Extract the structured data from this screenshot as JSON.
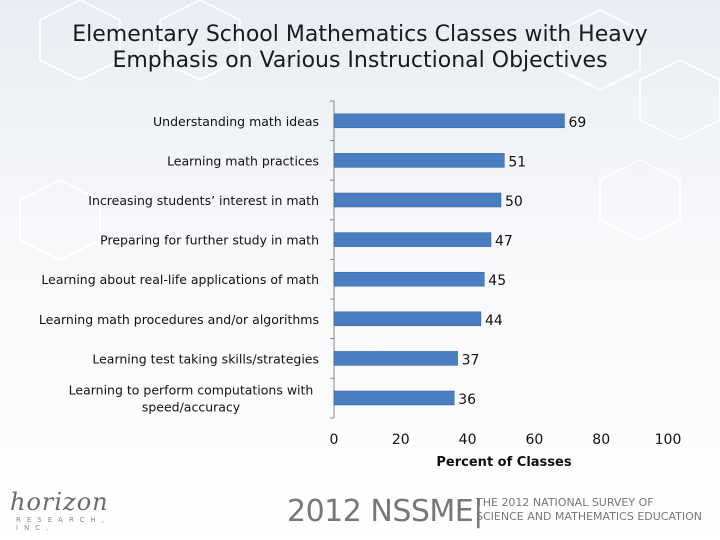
{
  "title": {
    "line1": "Elementary School Mathematics Classes with Heavy",
    "line2": "Emphasis on Various Instructional Objectives"
  },
  "chart_data": {
    "type": "bar",
    "orientation": "horizontal",
    "categories": [
      [
        "Understanding math ideas"
      ],
      [
        "Learning math practices"
      ],
      [
        "Increasing students’ interest in math"
      ],
      [
        "Preparing for further study in math"
      ],
      [
        "Learning about real-life applications of math"
      ],
      [
        "Learning math procedures and/or algorithms"
      ],
      [
        "Learning test taking skills/strategies"
      ],
      [
        "Learning to perform computations with",
        "speed/accuracy"
      ]
    ],
    "values": [
      69,
      51,
      50,
      47,
      45,
      44,
      37,
      36
    ],
    "xlabel": "Percent of Classes",
    "xlim": [
      0,
      100
    ],
    "xticks": [
      0,
      20,
      40,
      60,
      80,
      100
    ],
    "bar_color": "#4a7ec0",
    "grid": false,
    "legend": "none"
  },
  "footer": {
    "brand": "2012 NSSME|",
    "sub_line1": "THE 2012 NATIONAL SURVEY OF",
    "sub_line2": "SCIENCE AND MATHEMATICS EDUCATION"
  },
  "logo": {
    "script": "horizon",
    "sub": "RESEARCH, INC."
  }
}
